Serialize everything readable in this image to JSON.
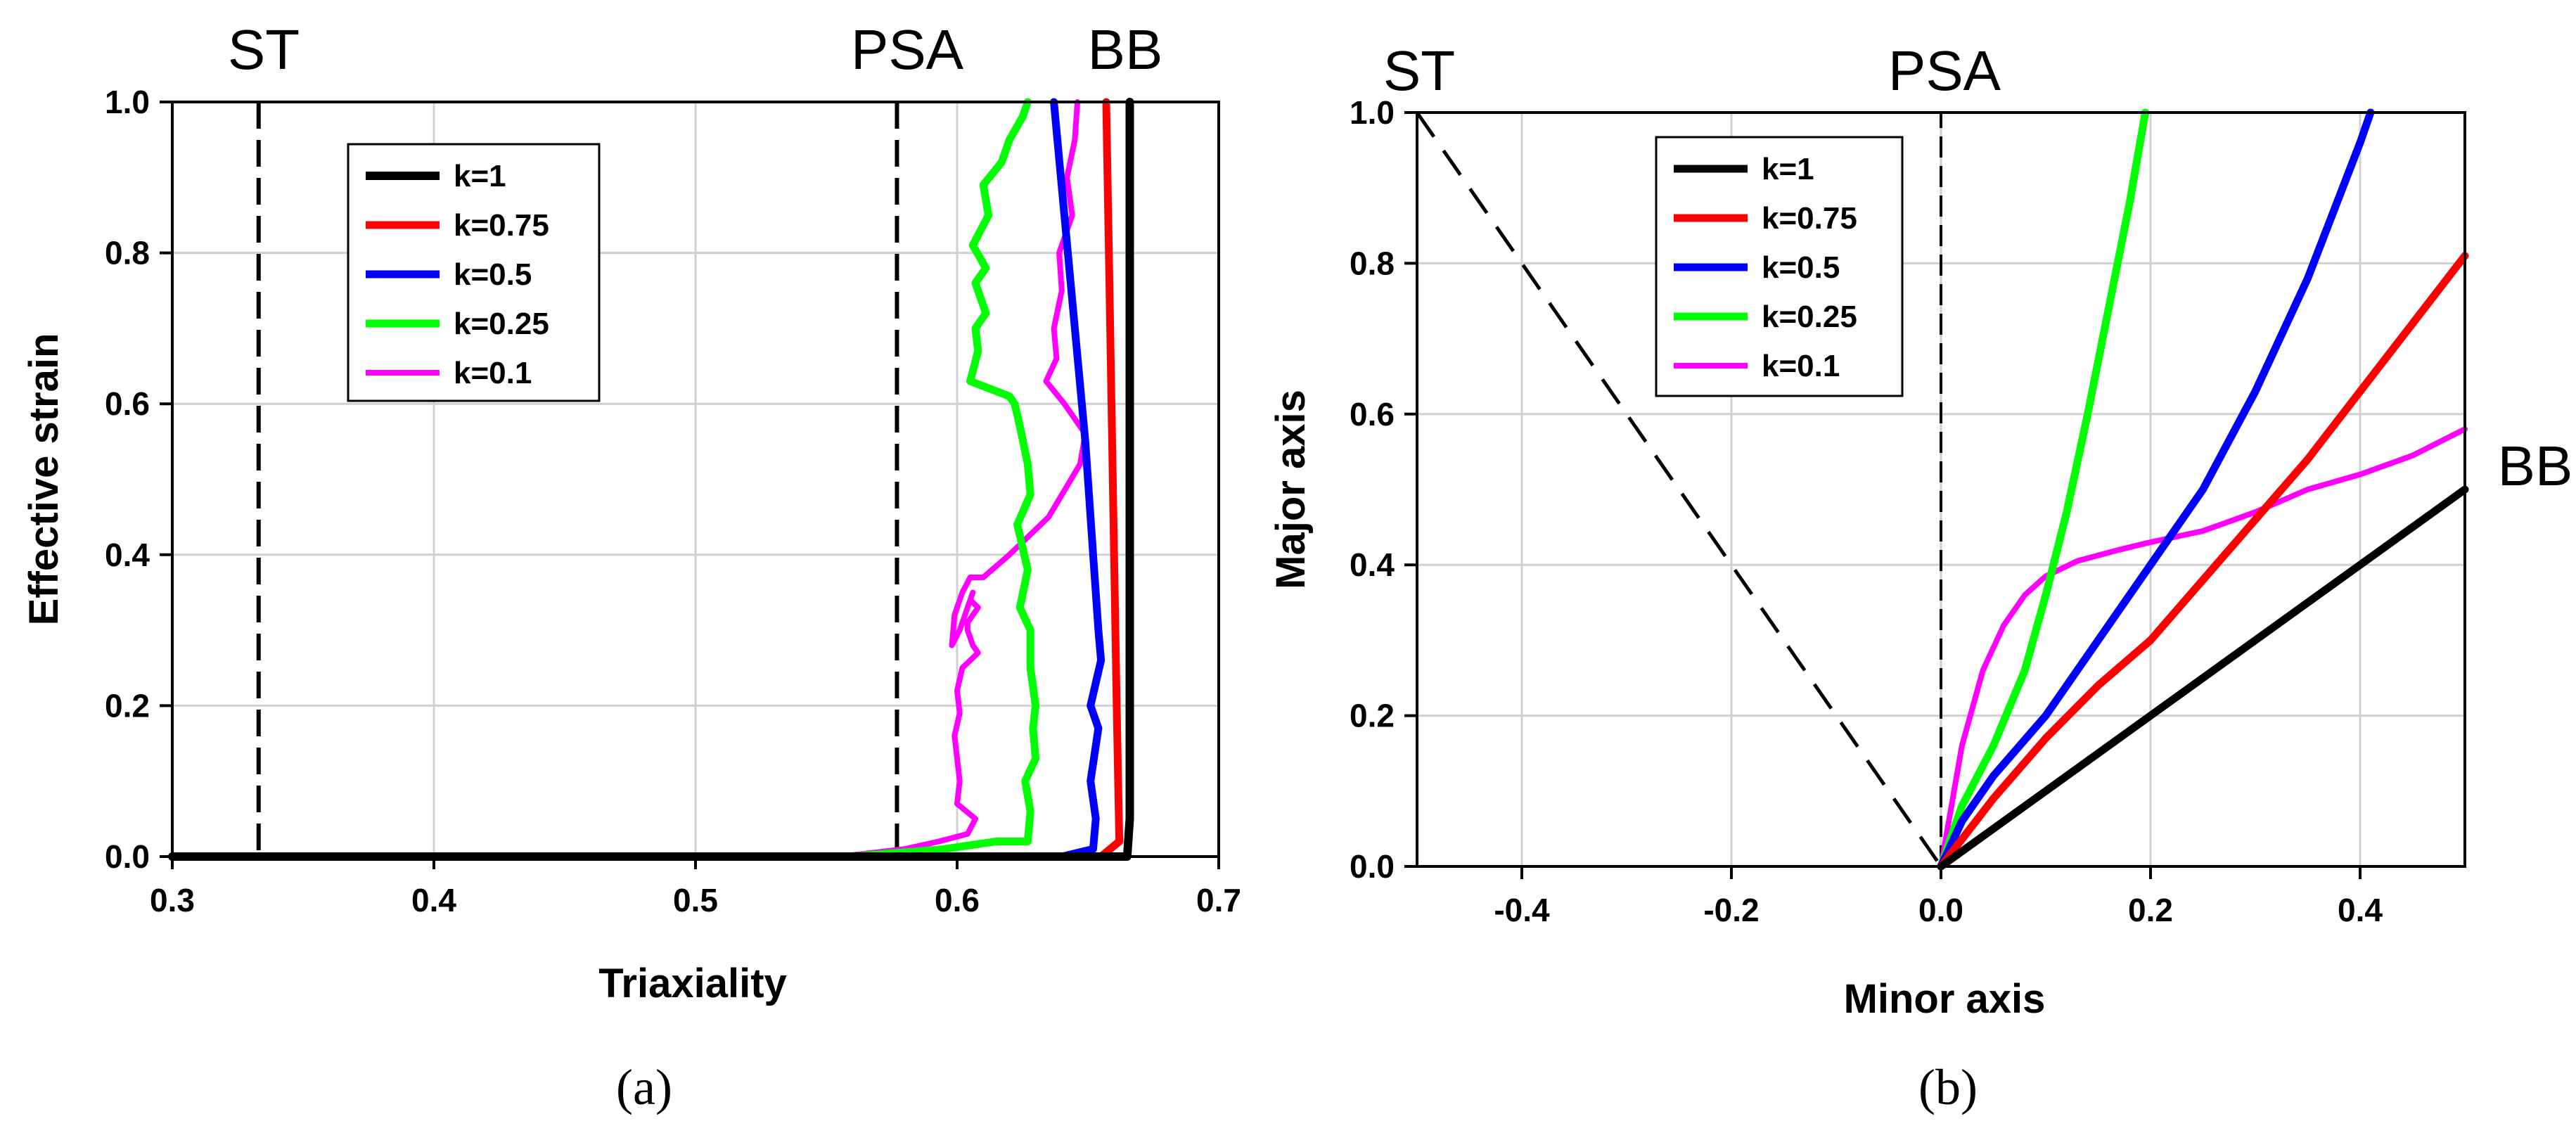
{
  "panel_labels": {
    "a": "(a)",
    "b": "(b)"
  },
  "chart_data": [
    {
      "id": "a",
      "type": "line",
      "xlabel": "Triaxiality",
      "ylabel": "Effective strain",
      "xlim": [
        0.3,
        0.7
      ],
      "ylim": [
        0.0,
        1.0
      ],
      "xticks": [
        0.3,
        0.4,
        0.5,
        0.6,
        0.7
      ],
      "xtick_labels": [
        "0.3",
        "0.4",
        "0.5",
        "0.6",
        "0.7"
      ],
      "yticks": [
        0.0,
        0.2,
        0.4,
        0.6,
        0.8,
        1.0
      ],
      "ytick_labels": [
        "0.0",
        "0.2",
        "0.4",
        "0.6",
        "0.8",
        "1.0"
      ],
      "grid": true,
      "legend_position": "top-left",
      "reference_lines": [
        {
          "label": "ST",
          "x": 0.333
        },
        {
          "label": "PSA",
          "x": 0.577
        },
        {
          "label": "BB",
          "x": 0.667
        }
      ],
      "series": [
        {
          "name": "k=1",
          "color": "#000000",
          "width": 12,
          "x": [
            0.3,
            0.665,
            0.666,
            0.666,
            0.666,
            0.666,
            0.666
          ],
          "y": [
            0.0,
            0.0,
            0.05,
            0.2,
            0.5,
            0.8,
            1.0
          ]
        },
        {
          "name": "k=0.75",
          "color": "#ff0000",
          "width": 11,
          "x": [
            0.3,
            0.655,
            0.662,
            0.661,
            0.66,
            0.659,
            0.658,
            0.657
          ],
          "y": [
            0.0,
            0.0,
            0.02,
            0.2,
            0.4,
            0.6,
            0.8,
            1.0
          ]
        },
        {
          "name": "k=0.5",
          "color": "#0000ff",
          "width": 11,
          "x": [
            0.3,
            0.64,
            0.652,
            0.653,
            0.651,
            0.654,
            0.651,
            0.655,
            0.654,
            0.652,
            0.649,
            0.645,
            0.641,
            0.637
          ],
          "y": [
            0.0,
            0.0,
            0.01,
            0.05,
            0.1,
            0.17,
            0.2,
            0.26,
            0.3,
            0.4,
            0.55,
            0.7,
            0.85,
            1.0
          ]
        },
        {
          "name": "k=0.25",
          "color": "#00ff00",
          "width": 11,
          "x": [
            0.3,
            0.56,
            0.595,
            0.615,
            0.627,
            0.628,
            0.626,
            0.63,
            0.629,
            0.63,
            0.628,
            0.628,
            0.624,
            0.627,
            0.623,
            0.628,
            0.627,
            0.624,
            0.622,
            0.62,
            0.605,
            0.608,
            0.607,
            0.611,
            0.607,
            0.611,
            0.606,
            0.612,
            0.61,
            0.617,
            0.62,
            0.625,
            0.627
          ],
          "y": [
            0.0,
            0.0,
            0.01,
            0.02,
            0.02,
            0.06,
            0.1,
            0.13,
            0.17,
            0.2,
            0.25,
            0.3,
            0.33,
            0.38,
            0.44,
            0.48,
            0.52,
            0.57,
            0.6,
            0.61,
            0.63,
            0.67,
            0.7,
            0.72,
            0.76,
            0.78,
            0.81,
            0.85,
            0.89,
            0.92,
            0.95,
            0.98,
            1.0
          ]
        },
        {
          "name": "k=0.1",
          "color": "#ff00ff",
          "width": 8,
          "x": [
            0.3,
            0.555,
            0.58,
            0.593,
            0.604,
            0.607,
            0.6,
            0.601,
            0.6,
            0.599,
            0.601,
            0.6,
            0.602,
            0.608,
            0.606,
            0.604,
            0.604,
            0.608,
            0.605,
            0.606,
            0.601,
            0.598,
            0.599,
            0.602,
            0.605,
            0.61,
            0.62,
            0.635,
            0.647,
            0.649,
            0.641,
            0.634,
            0.638,
            0.637,
            0.64,
            0.639,
            0.644,
            0.642,
            0.645,
            0.646
          ],
          "y": [
            0.0,
            0.0,
            0.01,
            0.02,
            0.03,
            0.05,
            0.07,
            0.1,
            0.13,
            0.16,
            0.19,
            0.22,
            0.25,
            0.27,
            0.28,
            0.3,
            0.31,
            0.33,
            0.34,
            0.35,
            0.3,
            0.28,
            0.32,
            0.35,
            0.37,
            0.37,
            0.4,
            0.45,
            0.52,
            0.56,
            0.6,
            0.63,
            0.66,
            0.7,
            0.75,
            0.8,
            0.85,
            0.9,
            0.95,
            1.0
          ]
        }
      ]
    },
    {
      "id": "b",
      "type": "line",
      "xlabel": "Minor axis",
      "ylabel": "Major axis",
      "xlim": [
        -0.5,
        0.5
      ],
      "ylim": [
        0.0,
        1.0
      ],
      "xticks": [
        -0.4,
        -0.2,
        0.0,
        0.2,
        0.4
      ],
      "xtick_labels": [
        "-0.4",
        "-0.2",
        "0.0",
        "0.2",
        "0.4"
      ],
      "yticks": [
        0.0,
        0.2,
        0.4,
        0.6,
        0.8,
        1.0
      ],
      "ytick_labels": [
        "0.0",
        "0.2",
        "0.4",
        "0.6",
        "0.8",
        "1.0"
      ],
      "grid": true,
      "legend_position": "top-center",
      "annotations": [
        {
          "label": "ST",
          "x": -0.5,
          "y": 1.0
        },
        {
          "label": "PSA",
          "x": 0.0,
          "y": 1.0
        },
        {
          "label": "BB",
          "x": 0.5,
          "y": 0.5
        }
      ],
      "reference_lines": [
        {
          "label": "ST",
          "x": [
            -0.5,
            0.0
          ],
          "y": [
            1.0,
            0.0
          ]
        },
        {
          "label": "PSA",
          "x": [
            0.0,
            0.0
          ],
          "y": [
            0.0,
            1.0
          ]
        }
      ],
      "series": [
        {
          "name": "k=1",
          "color": "#000000",
          "width": 11,
          "x": [
            0.0,
            0.5
          ],
          "y": [
            0.0,
            0.5
          ]
        },
        {
          "name": "k=0.75",
          "color": "#ff0000",
          "width": 11,
          "x": [
            0.0,
            0.05,
            0.1,
            0.15,
            0.2,
            0.25,
            0.3,
            0.35,
            0.4,
            0.45,
            0.5
          ],
          "y": [
            0.0,
            0.09,
            0.17,
            0.24,
            0.3,
            0.38,
            0.46,
            0.54,
            0.63,
            0.72,
            0.81
          ]
        },
        {
          "name": "k=0.5",
          "color": "#0000ff",
          "width": 11,
          "x": [
            0.0,
            0.02,
            0.05,
            0.1,
            0.15,
            0.2,
            0.25,
            0.3,
            0.35,
            0.4,
            0.41
          ],
          "y": [
            0.0,
            0.06,
            0.12,
            0.2,
            0.3,
            0.4,
            0.5,
            0.63,
            0.78,
            0.96,
            1.0
          ]
        },
        {
          "name": "k=0.25",
          "color": "#00ff00",
          "width": 11,
          "x": [
            0.0,
            0.02,
            0.05,
            0.08,
            0.1,
            0.12,
            0.14,
            0.16,
            0.18,
            0.195
          ],
          "y": [
            0.0,
            0.08,
            0.16,
            0.26,
            0.36,
            0.47,
            0.6,
            0.74,
            0.88,
            1.0
          ]
        },
        {
          "name": "k=0.1",
          "color": "#ff00ff",
          "width": 8,
          "x": [
            0.0,
            0.01,
            0.02,
            0.04,
            0.06,
            0.08,
            0.1,
            0.13,
            0.17,
            0.2,
            0.25,
            0.3,
            0.35,
            0.4,
            0.45,
            0.5
          ],
          "y": [
            0.0,
            0.08,
            0.16,
            0.26,
            0.32,
            0.36,
            0.385,
            0.405,
            0.42,
            0.43,
            0.445,
            0.47,
            0.5,
            0.52,
            0.545,
            0.58
          ]
        }
      ]
    }
  ]
}
